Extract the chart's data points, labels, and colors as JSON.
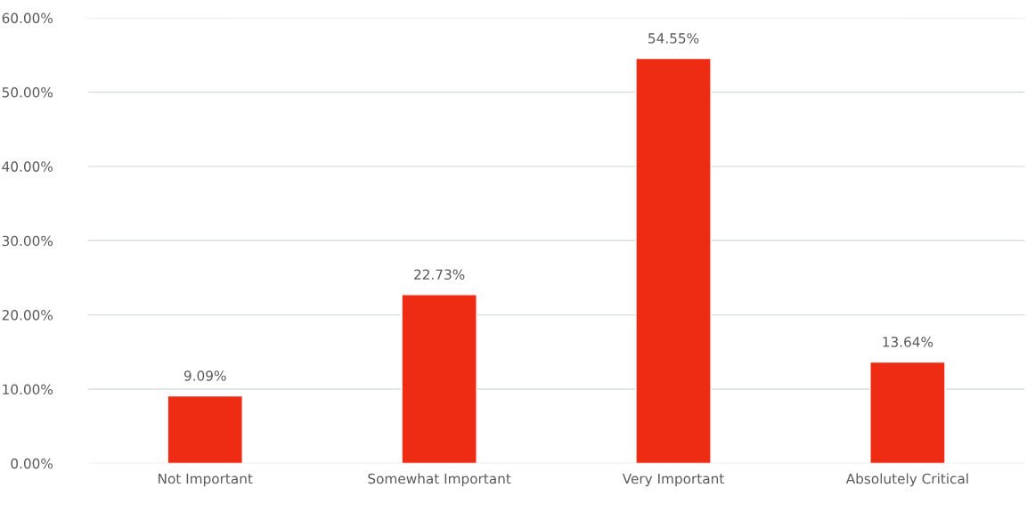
{
  "chart_data": {
    "type": "bar",
    "categories": [
      "Not Important",
      "Somewhat Important",
      "Very Important",
      "Absolutely Critical"
    ],
    "values": [
      9.09,
      22.73,
      54.55,
      13.64
    ],
    "value_labels": [
      "9.09%",
      "22.73%",
      "54.55%",
      "13.64%"
    ],
    "color": "#ee2c14",
    "ylim": [
      0,
      60
    ],
    "yticks": [
      {
        "value": 0,
        "label": "0.00%"
      },
      {
        "value": 10,
        "label": "10.00%"
      },
      {
        "value": 20,
        "label": "20.00%"
      },
      {
        "value": 30,
        "label": "30.00%"
      },
      {
        "value": 40,
        "label": "40.00%"
      },
      {
        "value": 50,
        "label": "50.00%"
      },
      {
        "value": 60,
        "label": "60.00%"
      }
    ],
    "grid": "y"
  }
}
